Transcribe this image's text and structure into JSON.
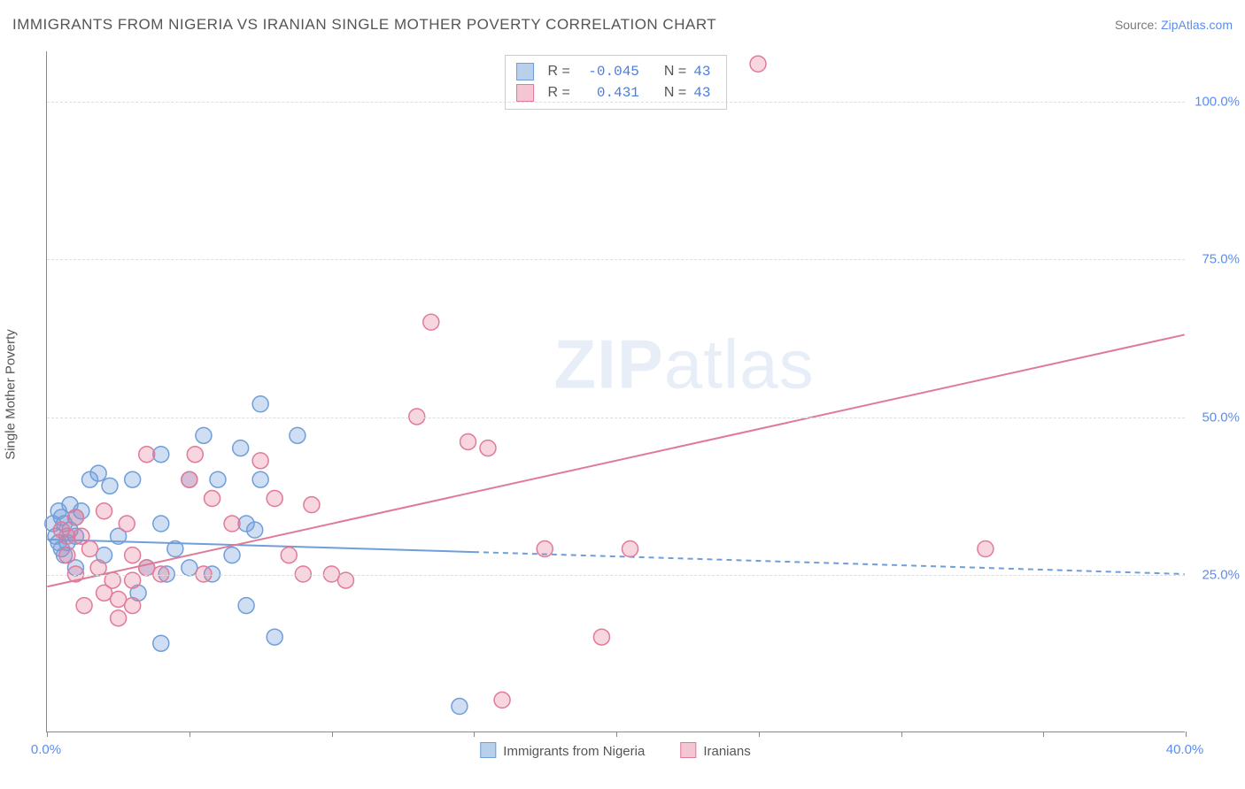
{
  "header": {
    "title": "IMMIGRANTS FROM NIGERIA VS IRANIAN SINGLE MOTHER POVERTY CORRELATION CHART",
    "source_prefix": "Source: ",
    "source_link": "ZipAtlas.com"
  },
  "watermark": {
    "zip": "ZIP",
    "atlas": "atlas"
  },
  "chart": {
    "type": "scatter",
    "background_color": "#ffffff",
    "grid_color": "#dddddd",
    "axis_color": "#888888",
    "label_fontsize": 15,
    "ylabel": "Single Mother Poverty",
    "xlim": [
      0,
      40
    ],
    "ylim": [
      0,
      108
    ],
    "xticks": [
      0,
      5,
      10,
      15,
      20,
      25,
      30,
      35,
      40
    ],
    "xtick_labels": {
      "0": "0.0%",
      "40": "40.0%"
    },
    "yticks": [
      25,
      50,
      75,
      100
    ],
    "ytick_labels": {
      "25": "25.0%",
      "50": "50.0%",
      "75": "75.0%",
      "100": "100.0%"
    },
    "marker_radius": 9,
    "marker_stroke_width": 1.5,
    "line_width": 2,
    "dash_pattern": "6,5",
    "series": [
      {
        "name": "Immigrants from Nigeria",
        "fill_color": "rgba(120,160,220,0.35)",
        "stroke_color": "#6f9ed9",
        "swatch_fill": "#b9d0ec",
        "swatch_border": "#6f9ed9",
        "r_label": "R = ",
        "r_value": "-0.045",
        "n_label": "N = ",
        "n_value": "43",
        "points": [
          [
            0.2,
            33
          ],
          [
            0.3,
            31
          ],
          [
            0.5,
            34
          ],
          [
            0.5,
            29
          ],
          [
            0.4,
            35
          ],
          [
            0.6,
            33
          ],
          [
            0.7,
            30
          ],
          [
            0.8,
            32
          ],
          [
            0.8,
            36
          ],
          [
            1.0,
            34
          ],
          [
            1.2,
            35
          ],
          [
            0.4,
            30
          ],
          [
            0.6,
            28
          ],
          [
            1.0,
            31
          ],
          [
            1.0,
            26
          ],
          [
            1.5,
            40
          ],
          [
            1.8,
            41
          ],
          [
            2.2,
            39
          ],
          [
            2.0,
            28
          ],
          [
            2.5,
            31
          ],
          [
            3.0,
            40
          ],
          [
            3.5,
            26
          ],
          [
            4.0,
            33
          ],
          [
            4.2,
            25
          ],
          [
            4.5,
            29
          ],
          [
            4.0,
            44
          ],
          [
            3.2,
            22
          ],
          [
            5.0,
            40
          ],
          [
            5.5,
            47
          ],
          [
            5.0,
            26
          ],
          [
            5.8,
            25
          ],
          [
            6.0,
            40
          ],
          [
            6.5,
            28
          ],
          [
            6.8,
            45
          ],
          [
            7.0,
            20
          ],
          [
            7.0,
            33
          ],
          [
            7.3,
            32
          ],
          [
            7.5,
            52
          ],
          [
            7.5,
            40
          ],
          [
            8.0,
            15
          ],
          [
            8.8,
            47
          ],
          [
            4.0,
            14
          ],
          [
            14.5,
            4
          ]
        ],
        "trend_solid": {
          "x1": 0,
          "y1": 30.5,
          "x2": 15,
          "y2": 28.5
        },
        "trend_dash": {
          "x1": 15,
          "y1": 28.5,
          "x2": 40,
          "y2": 25.0
        }
      },
      {
        "name": "Iranians",
        "fill_color": "rgba(230,120,150,0.30)",
        "stroke_color": "#e07a98",
        "swatch_fill": "#f4c6d4",
        "swatch_border": "#e07a98",
        "r_label": "R = ",
        "r_value": " 0.431",
        "n_label": "N = ",
        "n_value": "43",
        "points": [
          [
            0.5,
            32
          ],
          [
            0.7,
            31
          ],
          [
            0.7,
            28
          ],
          [
            1.0,
            34
          ],
          [
            1.0,
            25
          ],
          [
            1.2,
            31
          ],
          [
            1.3,
            20
          ],
          [
            1.5,
            29
          ],
          [
            1.8,
            26
          ],
          [
            2.0,
            22
          ],
          [
            2.0,
            35
          ],
          [
            2.3,
            24
          ],
          [
            2.5,
            18
          ],
          [
            2.5,
            21
          ],
          [
            2.8,
            33
          ],
          [
            3.0,
            24
          ],
          [
            3.0,
            28
          ],
          [
            3.0,
            20
          ],
          [
            3.5,
            26
          ],
          [
            3.5,
            44
          ],
          [
            4.0,
            25
          ],
          [
            5.0,
            40
          ],
          [
            5.2,
            44
          ],
          [
            5.5,
            25
          ],
          [
            5.8,
            37
          ],
          [
            6.5,
            33
          ],
          [
            7.5,
            43
          ],
          [
            8.0,
            37
          ],
          [
            8.5,
            28
          ],
          [
            9.0,
            25
          ],
          [
            9.3,
            36
          ],
          [
            10.0,
            25
          ],
          [
            10.5,
            24
          ],
          [
            13.0,
            50
          ],
          [
            13.5,
            65
          ],
          [
            14.8,
            46
          ],
          [
            15.5,
            45
          ],
          [
            16.0,
            5
          ],
          [
            17.5,
            29
          ],
          [
            19.5,
            15
          ],
          [
            20.5,
            29
          ],
          [
            25.0,
            106
          ],
          [
            33.0,
            29
          ]
        ],
        "trend_solid": {
          "x1": 0,
          "y1": 23,
          "x2": 40,
          "y2": 63
        },
        "trend_dash": null
      }
    ],
    "x_legend": [
      {
        "swatch_fill": "#b9d0ec",
        "swatch_border": "#6f9ed9",
        "label": "Immigrants from Nigeria"
      },
      {
        "swatch_fill": "#f4c6d4",
        "swatch_border": "#e07a98",
        "label": "Iranians"
      }
    ]
  }
}
